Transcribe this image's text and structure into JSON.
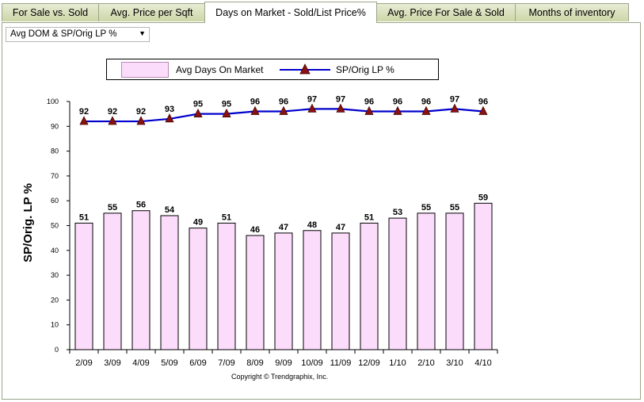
{
  "tabs": [
    {
      "label": "For Sale vs. Sold",
      "active": false
    },
    {
      "label": "Avg. Price per Sqft",
      "active": false
    },
    {
      "label": "Days on Market - Sold/List Price%",
      "active": true
    },
    {
      "label": "Avg. Price For Sale & Sold",
      "active": false
    },
    {
      "label": "Months of inventory",
      "active": false
    }
  ],
  "dropdown": {
    "selected": "Avg DOM & SP/Orig LP %"
  },
  "legend": {
    "bar_label": "Avg Days On Market",
    "line_label": "SP/Orig LP %"
  },
  "copyright": "Copyright © Trendgraphix, Inc.",
  "colors": {
    "bar_fill": "#fcdcfb",
    "line": "#0000cc",
    "marker": "#8b1010"
  },
  "chart_data": {
    "type": "bar",
    "categories": [
      "2/09",
      "3/09",
      "4/09",
      "5/09",
      "6/09",
      "7/09",
      "8/09",
      "9/09",
      "10/09",
      "11/09",
      "12/09",
      "1/10",
      "2/10",
      "3/10",
      "4/10"
    ],
    "series": [
      {
        "name": "Avg Days On Market",
        "type": "bar",
        "values": [
          51,
          55,
          56,
          54,
          49,
          51,
          46,
          47,
          48,
          47,
          51,
          53,
          55,
          55,
          59
        ]
      },
      {
        "name": "SP/Orig LP %",
        "type": "line",
        "values": [
          92,
          92,
          92,
          93,
          95,
          95,
          96,
          96,
          97,
          97,
          96,
          96,
          96,
          97,
          96
        ]
      }
    ],
    "ylabel": "SP/Orig. LP %",
    "ylim": [
      0,
      100
    ],
    "yticks": [
      0,
      10,
      20,
      30,
      40,
      50,
      60,
      70,
      80,
      90,
      100
    ]
  }
}
